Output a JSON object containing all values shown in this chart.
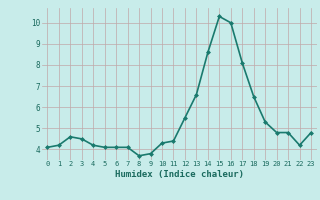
{
  "x": [
    0,
    1,
    2,
    3,
    4,
    5,
    6,
    7,
    8,
    9,
    10,
    11,
    12,
    13,
    14,
    15,
    16,
    17,
    18,
    19,
    20,
    21,
    22,
    23
  ],
  "y": [
    4.1,
    4.2,
    4.6,
    4.5,
    4.2,
    4.1,
    4.1,
    4.1,
    3.7,
    3.8,
    4.3,
    4.4,
    5.5,
    6.6,
    8.6,
    10.3,
    10.0,
    8.1,
    6.5,
    5.3,
    4.8,
    4.8,
    4.2,
    4.8
  ],
  "line_color": "#1a7a6e",
  "marker": "D",
  "marker_size": 2.0,
  "line_width": 1.2,
  "xlabel": "Humidex (Indice chaleur)",
  "ylim": [
    3.5,
    10.7
  ],
  "xlim": [
    -0.5,
    23.5
  ],
  "yticks": [
    4,
    5,
    6,
    7,
    8,
    9,
    10
  ],
  "xtick_labels": [
    "0",
    "1",
    "2",
    "3",
    "4",
    "5",
    "6",
    "7",
    "8",
    "9",
    "10",
    "11",
    "12",
    "13",
    "14",
    "15",
    "16",
    "17",
    "18",
    "19",
    "20",
    "21",
    "22",
    "23"
  ],
  "bg_color": "#c8ecea",
  "grid_color": "#c0a8a8",
  "tick_color": "#1a6a5e",
  "label_color": "#1a6a5e"
}
